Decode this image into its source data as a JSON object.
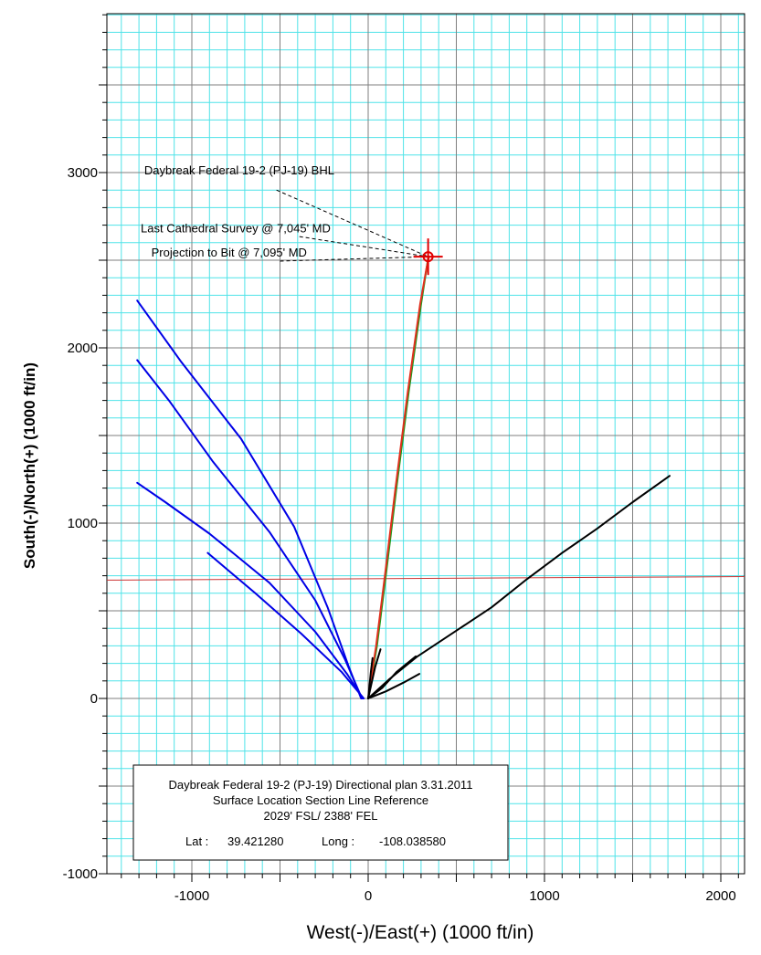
{
  "chart_data": {
    "type": "line",
    "title": "",
    "xlabel": "West(-)/East(+) (1000 ft/in)",
    "ylabel": "South(-)/North(+) (1000 ft/in)",
    "xlim": [
      -1490,
      2130
    ],
    "ylim": [
      -1000,
      3900
    ],
    "x_ticks": [
      -1000,
      0,
      1000,
      2000
    ],
    "y_ticks": [
      -1000,
      0,
      1000,
      2000,
      3000
    ],
    "x_tick_labels": [
      "-1000",
      "0",
      "1000",
      "2000"
    ],
    "y_tick_labels": [
      "-1000",
      "0",
      "1000",
      "2000",
      "3000"
    ],
    "grid": true,
    "colors": {
      "grid_minor": "#4fe3e8",
      "grid_major": "#7f7f7f",
      "offset_wells": "#0000e6",
      "planned": "#1a9e1a",
      "actual": "#e0301e",
      "section_line": "#cc3333",
      "other": "#000000"
    },
    "series": [
      {
        "color": "#0000e6",
        "x": [
          -40,
          -110,
          -230,
          -420,
          -720,
          -1060,
          -1310
        ],
        "y": [
          0,
          180,
          520,
          980,
          1480,
          1920,
          2270
        ]
      },
      {
        "color": "#0000e6",
        "x": [
          -35,
          -130,
          -300,
          -560,
          -880,
          -1130,
          -1310
        ],
        "y": [
          0,
          220,
          560,
          950,
          1350,
          1700,
          1930
        ]
      },
      {
        "color": "#0000e6",
        "x": [
          -30,
          -120,
          -300,
          -560,
          -900,
          -1150,
          -1310
        ],
        "y": [
          0,
          140,
          380,
          660,
          940,
          1120,
          1230
        ]
      },
      {
        "color": "#0000e6",
        "x": [
          -25,
          -150,
          -380,
          -640,
          -910
        ],
        "y": [
          0,
          150,
          370,
          600,
          830
        ]
      },
      {
        "color": "#1a9e1a",
        "x": [
          0,
          50,
          100,
          160,
          230,
          300,
          340
        ],
        "y": [
          0,
          300,
          700,
          1200,
          1750,
          2250,
          2510
        ]
      },
      {
        "color": "#e0301e",
        "x": [
          0,
          45,
          95,
          155,
          225,
          295,
          330,
          345
        ],
        "y": [
          0,
          300,
          700,
          1200,
          1750,
          2250,
          2450,
          2520
        ]
      },
      {
        "color": "#000000",
        "x": [
          0,
          120,
          280,
          400,
          520,
          700,
          900,
          1100,
          1300,
          1500,
          1710
        ],
        "y": [
          0,
          110,
          240,
          320,
          400,
          520,
          680,
          830,
          970,
          1120,
          1270
        ]
      },
      {
        "color": "#000000",
        "x": [
          0,
          80,
          160,
          270
        ],
        "y": [
          0,
          60,
          150,
          240
        ]
      },
      {
        "color": "#000000",
        "x": [
          0,
          100,
          200,
          290
        ],
        "y": [
          0,
          40,
          90,
          140
        ]
      },
      {
        "color": "#000000",
        "x": [
          0,
          40,
          70
        ],
        "y": [
          0,
          180,
          280
        ]
      },
      {
        "color": "#000000",
        "x": [
          0,
          15,
          25
        ],
        "y": [
          0,
          150,
          230
        ]
      }
    ],
    "section_line": {
      "color": "#cc3333",
      "x": [
        -1490,
        2130
      ],
      "y": [
        675,
        695
      ]
    },
    "target": {
      "x": 340,
      "y": 2520
    },
    "annotations": [
      {
        "text": "Daybreak Federal 19-2 (PJ-19) BHL",
        "text_x": -1270,
        "text_y": 2990,
        "leader_start": [
          -520,
          2900
        ]
      },
      {
        "text": "Last Cathedral Survey @ 7,045' MD",
        "text_x": -1290,
        "text_y": 2660,
        "leader_start": [
          -390,
          2635
        ]
      },
      {
        "text": "Projection to Bit @ 7,095' MD",
        "text_x": -1230,
        "text_y": 2520,
        "leader_start": [
          -500,
          2495
        ]
      }
    ],
    "info_box": {
      "line1": "Daybreak Federal 19-2 (PJ-19) Directional plan 3.31.2011",
      "line2": "Surface Location Section Line Reference",
      "line3": "2029' FSL/ 2388' FEL",
      "lat_label": "Lat :",
      "lat_value": "39.421280",
      "long_label": "Long :",
      "long_value": "-108.038580"
    }
  }
}
